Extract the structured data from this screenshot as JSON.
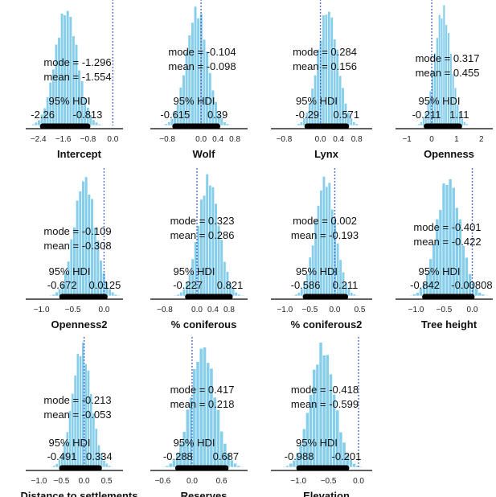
{
  "figure": {
    "stat_labels": {
      "mode": "mode =",
      "mean": "mean =",
      "hdi": "95% HDI"
    },
    "colors": {
      "bars": "#87ceeb",
      "hdi": "#000000",
      "reference_line": "#3a5fc4",
      "axis": "#000000"
    }
  },
  "chart_data": [
    {
      "type": "bar",
      "xlabel": "Intercept",
      "mode": "-1.296",
      "mean": "-1.554",
      "hdi_low": "-2.26",
      "hdi_high": "-0.813",
      "hdi": [
        -2.26,
        -0.813
      ],
      "ref": 0.0,
      "xlim": [
        -2.6,
        0.12
      ],
      "ticks": [
        -2.4,
        -1.6,
        -0.8,
        0.0
      ],
      "tick_labels": [
        "−2.4",
        "−1.6",
        "−0.8",
        "0.0"
      ],
      "center": -1.5,
      "sd": 0.36,
      "bins": 28
    },
    {
      "type": "bar",
      "xlabel": "Wolf",
      "mode": "-0.104",
      "mean": "-0.098",
      "hdi_low": "-0.615",
      "hdi_high": "0.39",
      "hdi": [
        -0.615,
        0.39
      ],
      "ref": 0.0,
      "xlim": [
        -1.05,
        0.95
      ],
      "ticks": [
        -0.8,
        0.0,
        0.4,
        0.8
      ],
      "tick_labels": [
        "−0.8",
        "0.0",
        "0.4",
        "0.8"
      ],
      "center": -0.1,
      "sd": 0.25,
      "bins": 26
    },
    {
      "type": "bar",
      "xlabel": "Lynx",
      "mode": "0.284",
      "mean": "0.156",
      "hdi_low": "-0.29",
      "hdi_high": "0.571",
      "hdi": [
        -0.29,
        0.571
      ],
      "ref": 0.0,
      "xlim": [
        -0.95,
        1.0
      ],
      "ticks": [
        -0.8,
        0.0,
        0.4,
        0.8
      ],
      "tick_labels": [
        "−0.8",
        "0.0",
        "0.4",
        "0.8"
      ],
      "center": 0.16,
      "sd": 0.22,
      "bins": 26
    },
    {
      "type": "bar",
      "xlabel": "Openness",
      "mode": "0.317",
      "mean": "0.455",
      "hdi_low": "-0.211",
      "hdi_high": "1.11",
      "hdi": [
        -0.211,
        1.11
      ],
      "ref": 0.0,
      "xlim": [
        -1.2,
        2.2
      ],
      "ticks": [
        -1,
        0,
        1,
        2
      ],
      "tick_labels": [
        "−1",
        "0",
        "1",
        "2"
      ],
      "center": 0.45,
      "sd": 0.33,
      "bins": 26
    },
    {
      "type": "bar",
      "xlabel": "Openness2",
      "mode": "-0.109",
      "mean": "-0.308",
      "hdi_low": "-0.672",
      "hdi_high": "0.0125",
      "hdi": [
        -0.672,
        0.0125
      ],
      "ref": 0.0,
      "xlim": [
        -1.15,
        0.2
      ],
      "ticks": [
        -1.0,
        -0.5,
        0.0
      ],
      "tick_labels": [
        "−1.0",
        "−0.5",
        "0.0"
      ],
      "center": -0.31,
      "sd": 0.17,
      "bins": 26
    },
    {
      "type": "bar",
      "xlabel": "% coniferous",
      "mode": "0.323",
      "mean": "0.286",
      "hdi_low": "-0.227",
      "hdi_high": "0.821",
      "hdi": [
        -0.227,
        0.821
      ],
      "ref": 0.0,
      "xlim": [
        -1.0,
        1.1
      ],
      "ticks": [
        -0.8,
        0.0,
        0.4,
        0.8
      ],
      "tick_labels": [
        "−0.8",
        "0.0",
        "0.4",
        "0.8"
      ],
      "center": 0.29,
      "sd": 0.26,
      "bins": 26
    },
    {
      "type": "bar",
      "xlabel": "% coniferous2",
      "mode": "0.002",
      "mean": "-0.193",
      "hdi_low": "-0.586",
      "hdi_high": "0.211",
      "hdi": [
        -0.586,
        0.211
      ],
      "ref": 0.0,
      "xlim": [
        -1.15,
        0.62
      ],
      "ticks": [
        -1.0,
        -0.5,
        0.0,
        0.5
      ],
      "tick_labels": [
        "−1.0",
        "−0.5",
        "0.0",
        "0.5"
      ],
      "center": -0.19,
      "sd": 0.2,
      "bins": 26
    },
    {
      "type": "bar",
      "xlabel": "Tree height",
      "mode": "-0.401",
      "mean": "-0.422",
      "hdi_low": "-0.842",
      "hdi_high": "-0.00808",
      "hdi": [
        -0.842,
        -0.00808
      ],
      "ref": 0.0,
      "xlim": [
        -1.25,
        0.25
      ],
      "ticks": [
        -1.0,
        -0.5,
        0.0
      ],
      "tick_labels": [
        "−1.0",
        "−0.5",
        "0.0"
      ],
      "center": -0.42,
      "sd": 0.21,
      "bins": 26
    },
    {
      "type": "bar",
      "xlabel": "Distance to settlements",
      "mode": "-0.213",
      "mean": "-0.053",
      "hdi_low": "-0.491",
      "hdi_high": "0.334",
      "hdi": [
        -0.491,
        0.334
      ],
      "ref": 0.0,
      "xlim": [
        -1.15,
        0.72
      ],
      "ticks": [
        -1.0,
        -0.5,
        0.0,
        0.5
      ],
      "tick_labels": [
        "−1.0",
        "−0.5",
        "0.0",
        "0.5"
      ],
      "center": -0.05,
      "sd": 0.21,
      "bins": 26
    },
    {
      "type": "bar",
      "xlabel": "Reserves",
      "mode": "0.417",
      "mean": "0.218",
      "hdi_low": "-0.288",
      "hdi_high": "0.687",
      "hdi": [
        -0.288,
        0.687
      ],
      "ref": 0.0,
      "xlim": [
        -0.72,
        1.0
      ],
      "ticks": [
        -0.6,
        0.0,
        0.6
      ],
      "tick_labels": [
        "−0.6",
        "0.0",
        "0.6"
      ],
      "center": 0.22,
      "sd": 0.25,
      "bins": 26
    },
    {
      "type": "bar",
      "xlabel": "Elevation",
      "mode": "-0.418",
      "mean": "-0.599",
      "hdi_low": "-0.988",
      "hdi_high": "-0.201",
      "hdi": [
        -0.988,
        -0.201
      ],
      "ref": 0.0,
      "xlim": [
        -1.35,
        0.12
      ],
      "ticks": [
        -1.0,
        -0.5,
        0.0
      ],
      "tick_labels": [
        "−1.0",
        "−0.5",
        "0.0"
      ],
      "center": -0.6,
      "sd": 0.2,
      "bins": 26
    }
  ]
}
